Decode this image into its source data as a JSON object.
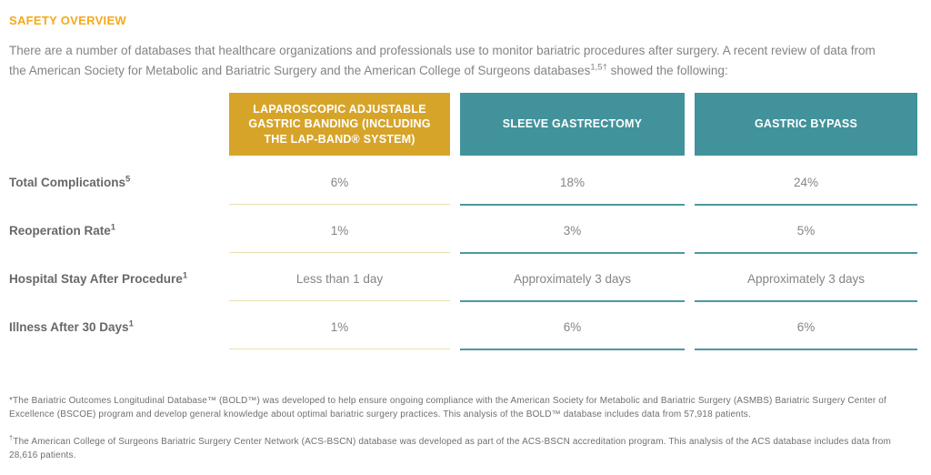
{
  "page": {
    "heading": "SAFETY OVERVIEW",
    "intro_text": "There are a number of databases that healthcare organizations and professionals use to monitor bariatric procedures after surgery. A recent review of data from the American Society for Metabolic and Bariatric Surgery and the American College of Surgeons databases",
    "intro_sup": "1,5†",
    "intro_tail": " showed the following:"
  },
  "table": {
    "columns": [
      {
        "label": "LAPAROSCOPIC ADJUSTABLE GASTRIC BANDING (INCLUDING THE LAP-BAND® SYSTEM)",
        "header_color": "#D7A42A",
        "underline_color": "#E8DFAE"
      },
      {
        "label": "SLEEVE GASTRECTOMY",
        "header_color": "#42929B",
        "underline_color": "#4C98A1"
      },
      {
        "label": "GASTRIC BYPASS",
        "header_color": "#42929B",
        "underline_color": "#4C98A1"
      }
    ],
    "rows": [
      {
        "label": "Total Complications",
        "sup": "5",
        "values": [
          "6%",
          "18%",
          "24%"
        ]
      },
      {
        "label": "Reoperation Rate",
        "sup": "1",
        "values": [
          "1%",
          "3%",
          "5%"
        ]
      },
      {
        "label": "Hospital Stay After Procedure",
        "sup": "1",
        "values": [
          "Less than 1 day",
          "Approximately 3 days",
          "Approximately 3 days"
        ]
      },
      {
        "label": "Illness After 30 Days",
        "sup": "1",
        "values": [
          "1%",
          "6%",
          "6%"
        ]
      }
    ]
  },
  "footnotes": [
    {
      "marker": "*",
      "text": "The Bariatric Outcomes Longitudinal Database™ (BOLD™) was developed to help ensure ongoing compliance with the American Society for Metabolic and Bariatric Surgery (ASMBS) Bariatric Surgery Center of Excellence (BSCOE) program and develop general knowledge about optimal bariatric surgery practices. This analysis of the BOLD™ database includes data from 57,918 patients."
    },
    {
      "marker": "†",
      "text": "The American College of Surgeons Bariatric Surgery Center Network (ACS-BSCN) database was developed as part of the ACS-BSCN accreditation program. This analysis of the ACS database includes data from 28,616 patients."
    }
  ],
  "colors": {
    "heading_orange": "#F6A81C",
    "header_gold": "#D7A42A",
    "header_teal": "#42929B",
    "underline_gold": "#E8DFAE",
    "underline_teal": "#4C98A1",
    "body_gray": "#828487",
    "label_gray": "#66686B"
  }
}
